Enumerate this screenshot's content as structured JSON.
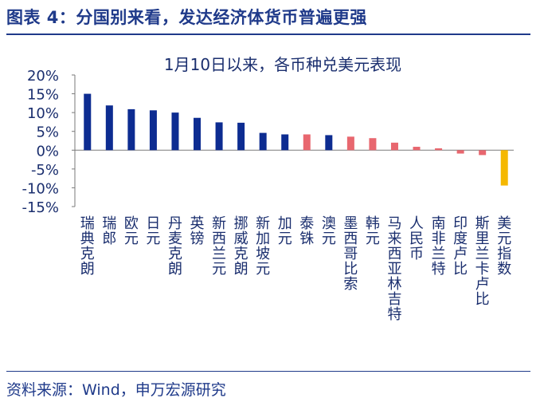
{
  "header": {
    "title": "图表 4：分国别来看，发达经济体货币普遍更强"
  },
  "footer": {
    "source": "资料来源：Wind，申万宏源研究"
  },
  "colors": {
    "positive_major": "#0d2c91",
    "positive_minor": "#e8676f",
    "negative": "#e8676f",
    "index": "#f5b800",
    "text": "#1a2e6e"
  },
  "chart_data": {
    "type": "bar",
    "title": "1月10日以来，各币种兑美元表现",
    "ylim": [
      -15,
      20
    ],
    "yticks": [
      "20%",
      "15%",
      "10%",
      "5%",
      "0%",
      "-5%",
      "-10%",
      "-15%"
    ],
    "ytick_values": [
      20,
      15,
      10,
      5,
      0,
      -5,
      -10,
      -15
    ],
    "categories": [
      "瑞典克朗",
      "瑞郎",
      "欧元",
      "日元",
      "丹麦克朗",
      "英镑",
      "新西兰元",
      "挪威克朗",
      "新加坡元",
      "加元",
      "泰铢",
      "澳元",
      "墨西哥比索",
      "韩元",
      "马来西亚林吉特",
      "人民币",
      "南非兰特",
      "印度卢比",
      "斯里兰卡卢比",
      "美元指数"
    ],
    "values": [
      15.0,
      11.9,
      10.9,
      10.6,
      10.0,
      8.6,
      7.4,
      7.3,
      4.6,
      4.2,
      4.2,
      4.0,
      3.6,
      3.2,
      2.0,
      0.9,
      0.5,
      -0.9,
      -1.3,
      -9.4
    ],
    "bar_colors": [
      "#0d2c91",
      "#0d2c91",
      "#0d2c91",
      "#0d2c91",
      "#0d2c91",
      "#0d2c91",
      "#0d2c91",
      "#0d2c91",
      "#0d2c91",
      "#0d2c91",
      "#e8676f",
      "#0d2c91",
      "#e8676f",
      "#e8676f",
      "#e8676f",
      "#e8676f",
      "#e8676f",
      "#e8676f",
      "#e8676f",
      "#f5b800"
    ]
  }
}
